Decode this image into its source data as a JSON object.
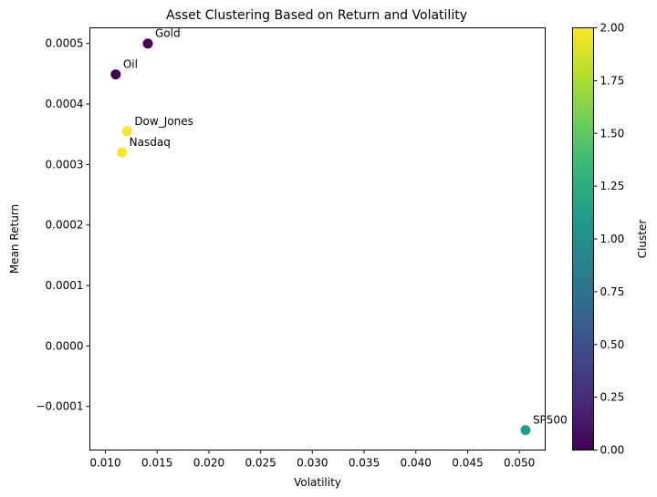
{
  "chart_data": {
    "type": "scatter",
    "title": "Asset Clustering Based on Return and Volatility",
    "xlabel": "Volatility",
    "ylabel": "Mean Return",
    "xlim": [
      0.0085,
      0.0525
    ],
    "ylim": [
      -0.000172,
      0.000526
    ],
    "grid": false,
    "x_ticks": [
      "0.010",
      "0.015",
      "0.020",
      "0.025",
      "0.030",
      "0.035",
      "0.040",
      "0.045",
      "0.050"
    ],
    "x_tick_values": [
      0.01,
      0.015,
      0.02,
      0.025,
      0.03,
      0.035,
      0.04,
      0.045,
      0.05
    ],
    "y_ticks": [
      "−0.0001",
      "0.0000",
      "0.0001",
      "0.0002",
      "0.0003",
      "0.0004",
      "0.0005"
    ],
    "y_tick_values": [
      -0.0001,
      0.0,
      0.0001,
      0.0002,
      0.0003,
      0.0004,
      0.0005
    ],
    "points": [
      {
        "label": "Gold",
        "x": 0.0141,
        "y": 0.0005,
        "cluster": 0
      },
      {
        "label": "Oil",
        "x": 0.011,
        "y": 0.000449,
        "cluster": 0
      },
      {
        "label": "Dow_Jones",
        "x": 0.0121,
        "y": 0.000355,
        "cluster": 2
      },
      {
        "label": "Nasdaq",
        "x": 0.0116,
        "y": 0.00032,
        "cluster": 2
      },
      {
        "label": "SP500",
        "x": 0.0506,
        "y": -0.000139,
        "cluster": 1
      }
    ],
    "colorbar": {
      "label": "Cluster",
      "colormap": "viridis",
      "range": [
        0,
        2
      ],
      "ticks": [
        "0.00",
        "0.25",
        "0.50",
        "0.75",
        "1.00",
        "1.25",
        "1.50",
        "1.75",
        "2.00"
      ],
      "tick_values": [
        0,
        0.25,
        0.5,
        0.75,
        1.0,
        1.25,
        1.5,
        1.75,
        2.0
      ],
      "colors": [
        "#440154",
        "#482878",
        "#3e4989",
        "#31688e",
        "#26828e",
        "#1f9e89",
        "#35b779",
        "#6ece58",
        "#b5de2b",
        "#fde725"
      ]
    }
  }
}
